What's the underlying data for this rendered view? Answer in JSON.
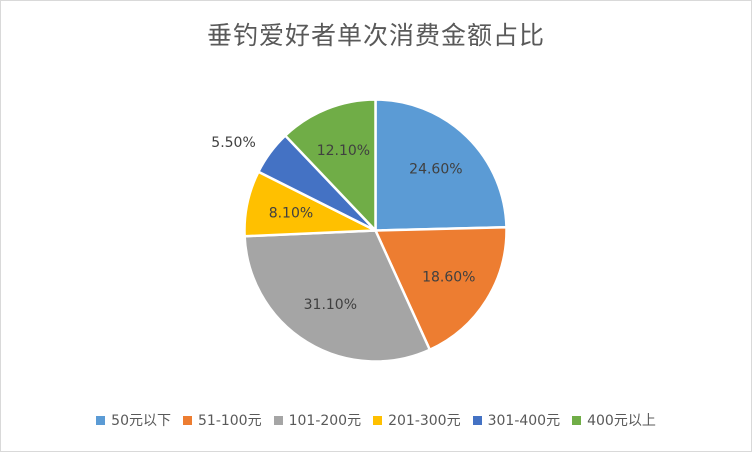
{
  "chart_data": {
    "type": "pie",
    "title": "垂钓爱好者单次消费金额占比",
    "categories": [
      "50元以下",
      "51-100元",
      "101-200元",
      "201-300元",
      "301-400元",
      "400元以上"
    ],
    "values": [
      24.6,
      18.6,
      31.1,
      8.1,
      5.5,
      12.1
    ],
    "value_labels": [
      "24.60%",
      "18.60%",
      "31.10%",
      "8.10%",
      "5.50%",
      "12.10%"
    ],
    "colors": [
      "#5B9BD5",
      "#ED7D31",
      "#A5A5A5",
      "#FFC000",
      "#4472C4",
      "#70AD47"
    ],
    "legend_position": "bottom",
    "start_angle": "12 o'clock",
    "direction": "clockwise"
  }
}
